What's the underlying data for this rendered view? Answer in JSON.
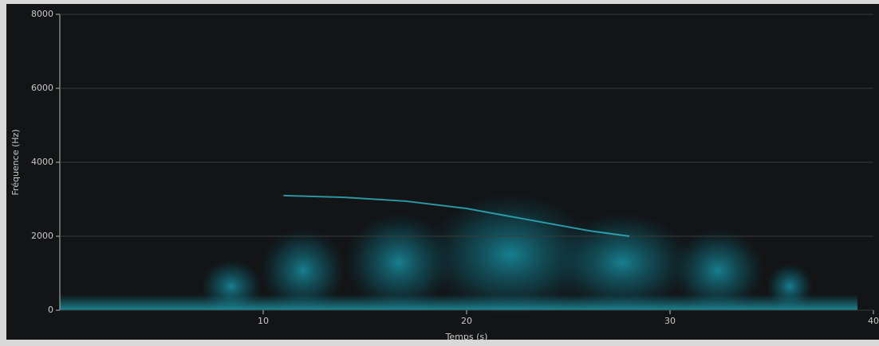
{
  "chart_data": {
    "type": "spectrogram",
    "x_label": "Temps (s)",
    "y_label": "Fréquence (Hz)",
    "x": [
      11,
      14,
      17,
      20,
      23,
      26,
      28
    ],
    "values": [
      3100,
      3050,
      2950,
      2750,
      2450,
      2150,
      2000
    ],
    "color": "#2fb6c6",
    "xlim": [
      0,
      40
    ],
    "ylim": [
      0,
      8000
    ],
    "xticks": [
      10,
      20,
      30,
      40
    ],
    "yticks": [
      0,
      2000,
      4000,
      6000,
      8000
    ],
    "grid": true
  }
}
